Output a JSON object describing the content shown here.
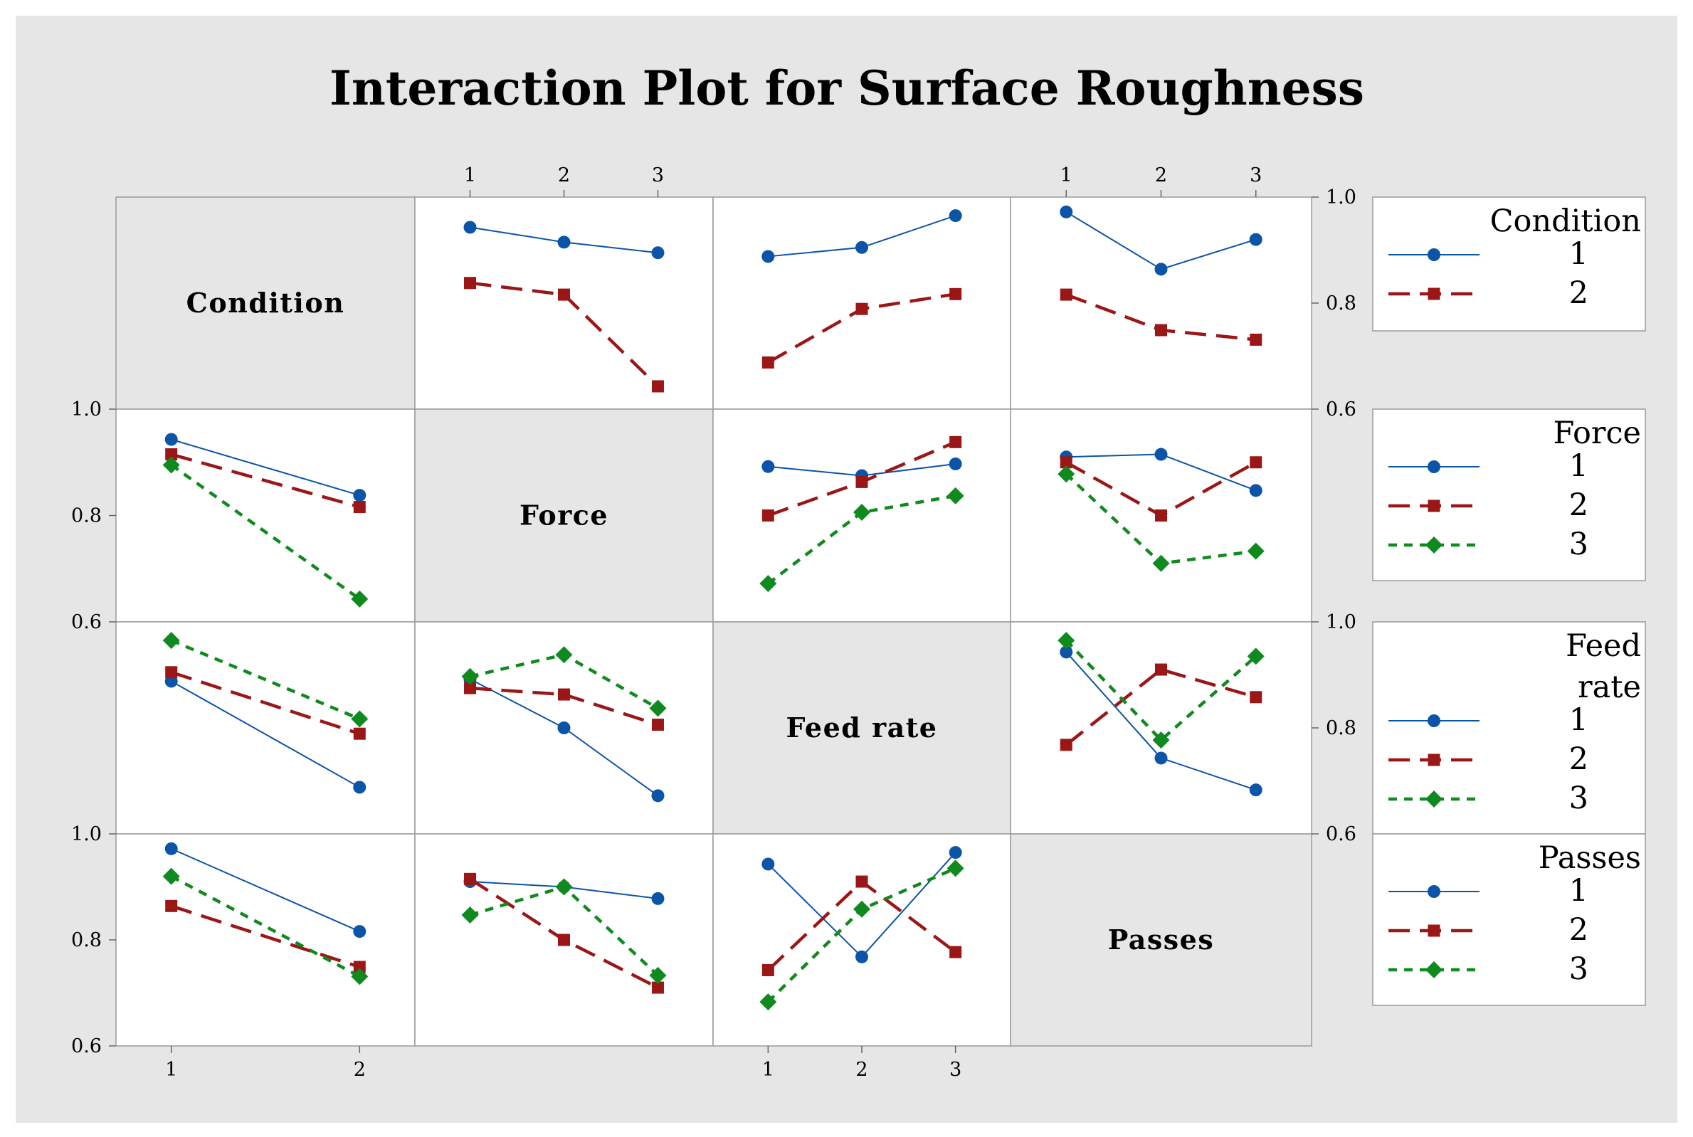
{
  "chart_data": {
    "type": "line",
    "title": "Interaction Plot for Surface Roughness",
    "factors": [
      {
        "name": "Condition",
        "levels": [
          "1",
          "2"
        ]
      },
      {
        "name": "Force",
        "levels": [
          "1",
          "2",
          "3"
        ]
      },
      {
        "name": "Feed rate",
        "levels": [
          "1",
          "2",
          "3"
        ]
      },
      {
        "name": "Passes",
        "levels": [
          "1",
          "2",
          "3"
        ]
      }
    ],
    "diagonal_labels": [
      "Condition",
      "Force",
      "Feed rate",
      "Passes"
    ],
    "ylim": [
      0.6,
      1.0
    ],
    "yticks": [
      "0.6",
      "0.8",
      "1.0"
    ],
    "series_styles": [
      {
        "level": "1",
        "color": "#0b54a8",
        "marker": "circle",
        "line": "solid"
      },
      {
        "level": "2",
        "color": "#9b1717",
        "marker": "square",
        "line": "dashed"
      },
      {
        "level": "3",
        "color": "#0f8a1e",
        "marker": "diamond",
        "line": "dotted"
      }
    ],
    "legends": [
      {
        "title_lines": [
          "Condition"
        ],
        "entries": [
          "1",
          "2"
        ]
      },
      {
        "title_lines": [
          "Force"
        ],
        "entries": [
          "1",
          "2",
          "3"
        ]
      },
      {
        "title_lines": [
          "Feed",
          "rate"
        ],
        "entries": [
          "1",
          "2",
          "3"
        ]
      },
      {
        "title_lines": [
          "Passes"
        ],
        "entries": [
          "1",
          "2",
          "3"
        ]
      }
    ],
    "panels": [
      {
        "row": 0,
        "col": 1,
        "x_factor": "Force",
        "trace_factor": "Condition",
        "series": [
          {
            "name": "1",
            "values": [
              0.943,
              0.915,
              0.895
            ]
          },
          {
            "name": "2",
            "values": [
              0.838,
              0.816,
              0.643
            ]
          }
        ]
      },
      {
        "row": 0,
        "col": 2,
        "x_factor": "Feed rate",
        "trace_factor": "Condition",
        "series": [
          {
            "name": "1",
            "values": [
              0.888,
              0.905,
              0.965
            ]
          },
          {
            "name": "2",
            "values": [
              0.688,
              0.789,
              0.817
            ]
          }
        ]
      },
      {
        "row": 0,
        "col": 3,
        "x_factor": "Passes",
        "trace_factor": "Condition",
        "series": [
          {
            "name": "1",
            "values": [
              0.972,
              0.864,
              0.92
            ]
          },
          {
            "name": "2",
            "values": [
              0.816,
              0.749,
              0.731
            ]
          }
        ]
      },
      {
        "row": 1,
        "col": 0,
        "x_factor": "Condition",
        "trace_factor": "Force",
        "series": [
          {
            "name": "1",
            "values": [
              0.943,
              0.838
            ]
          },
          {
            "name": "2",
            "values": [
              0.915,
              0.816
            ]
          },
          {
            "name": "3",
            "values": [
              0.895,
              0.643
            ]
          }
        ]
      },
      {
        "row": 1,
        "col": 2,
        "x_factor": "Feed rate",
        "trace_factor": "Force",
        "series": [
          {
            "name": "1",
            "values": [
              0.892,
              0.875,
              0.897
            ]
          },
          {
            "name": "2",
            "values": [
              0.8,
              0.863,
              0.938
            ]
          },
          {
            "name": "3",
            "values": [
              0.672,
              0.806,
              0.837
            ]
          }
        ]
      },
      {
        "row": 1,
        "col": 3,
        "x_factor": "Passes",
        "trace_factor": "Force",
        "series": [
          {
            "name": "1",
            "values": [
              0.91,
              0.915,
              0.847
            ]
          },
          {
            "name": "2",
            "values": [
              0.9,
              0.8,
              0.9
            ]
          },
          {
            "name": "3",
            "values": [
              0.878,
              0.71,
              0.733
            ]
          }
        ]
      },
      {
        "row": 2,
        "col": 0,
        "x_factor": "Condition",
        "trace_factor": "Feed rate",
        "series": [
          {
            "name": "1",
            "values": [
              0.888,
              0.688
            ]
          },
          {
            "name": "2",
            "values": [
              0.905,
              0.789
            ]
          },
          {
            "name": "3",
            "values": [
              0.965,
              0.817
            ]
          }
        ]
      },
      {
        "row": 2,
        "col": 1,
        "x_factor": "Force",
        "trace_factor": "Feed rate",
        "series": [
          {
            "name": "1",
            "values": [
              0.892,
              0.8,
              0.672
            ]
          },
          {
            "name": "2",
            "values": [
              0.875,
              0.863,
              0.806
            ]
          },
          {
            "name": "3",
            "values": [
              0.897,
              0.938,
              0.837
            ]
          }
        ]
      },
      {
        "row": 2,
        "col": 3,
        "x_factor": "Passes",
        "trace_factor": "Feed rate",
        "series": [
          {
            "name": "1",
            "values": [
              0.943,
              0.743,
              0.683
            ]
          },
          {
            "name": "2",
            "values": [
              0.768,
              0.91,
              0.858
            ]
          },
          {
            "name": "3",
            "values": [
              0.965,
              0.777,
              0.935
            ]
          }
        ]
      },
      {
        "row": 3,
        "col": 0,
        "x_factor": "Condition",
        "trace_factor": "Passes",
        "series": [
          {
            "name": "1",
            "values": [
              0.972,
              0.816
            ]
          },
          {
            "name": "2",
            "values": [
              0.864,
              0.749
            ]
          },
          {
            "name": "3",
            "values": [
              0.92,
              0.731
            ]
          }
        ]
      },
      {
        "row": 3,
        "col": 1,
        "x_factor": "Force",
        "trace_factor": "Passes",
        "series": [
          {
            "name": "1",
            "values": [
              0.91,
              0.9,
              0.878
            ]
          },
          {
            "name": "2",
            "values": [
              0.915,
              0.8,
              0.71
            ]
          },
          {
            "name": "3",
            "values": [
              0.847,
              0.9,
              0.733
            ]
          }
        ]
      },
      {
        "row": 3,
        "col": 2,
        "x_factor": "Feed rate",
        "trace_factor": "Passes",
        "series": [
          {
            "name": "1",
            "values": [
              0.943,
              0.768,
              0.965
            ]
          },
          {
            "name": "2",
            "values": [
              0.743,
              0.91,
              0.777
            ]
          },
          {
            "name": "3",
            "values": [
              0.683,
              0.858,
              0.935
            ]
          }
        ]
      }
    ]
  }
}
